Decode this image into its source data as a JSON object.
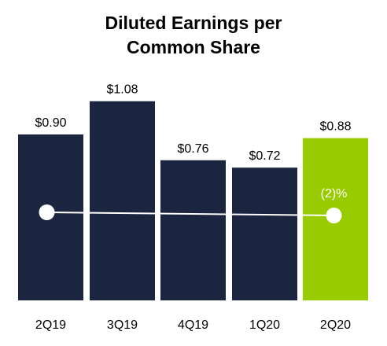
{
  "chart_data": {
    "type": "bar",
    "title_line1": "Diluted Earnings per",
    "title_line2": "Common Share",
    "categories": [
      "2Q19",
      "3Q19",
      "4Q19",
      "1Q20",
      "2Q20"
    ],
    "values": [
      0.9,
      1.08,
      0.76,
      0.72,
      0.88
    ],
    "value_labels": [
      "$0.90",
      "$1.08",
      "$0.76",
      "$0.72",
      "$0.88"
    ],
    "ylim": [
      0,
      1.2
    ],
    "grid": false,
    "legend": "none",
    "trend_line": {
      "from": "2Q19",
      "to": "2Q20",
      "change_label": "(2)%"
    },
    "colors": {
      "bar": "#1b2540",
      "highlight_bar": "#99cc00",
      "trend_line": "#ffffff",
      "text": "#000000"
    }
  }
}
